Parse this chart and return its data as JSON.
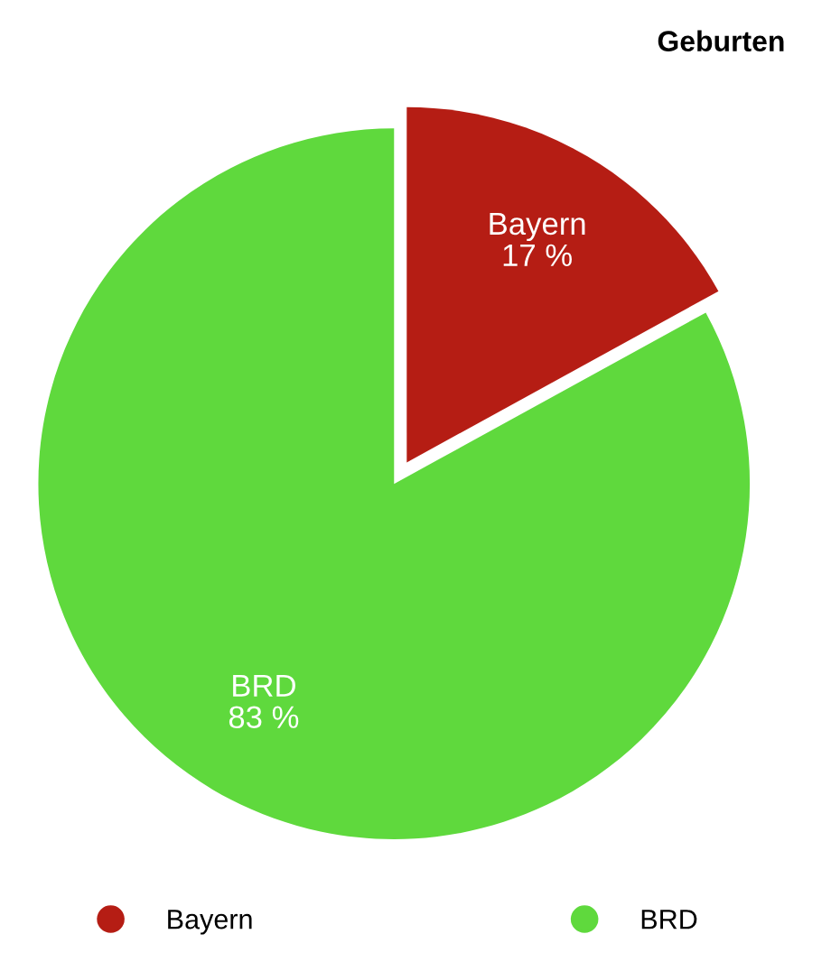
{
  "chart_data": {
    "type": "pie",
    "title": "Geburten",
    "categories": [
      "Bayern",
      "BRD"
    ],
    "values": [
      17,
      83
    ],
    "colors": [
      "#b51d14",
      "#5fd93d"
    ],
    "value_labels": [
      "17 %",
      "83 %"
    ],
    "legend": "bottom"
  }
}
